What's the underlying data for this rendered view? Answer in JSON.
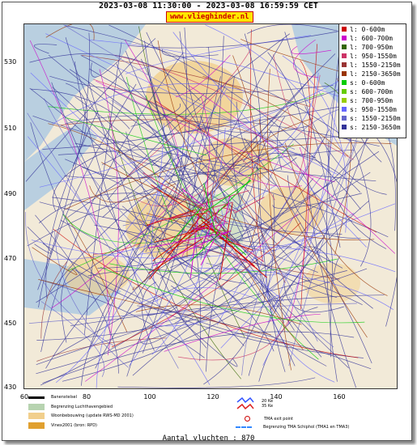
{
  "header": {
    "title": "2023-03-08 11:30:00 - 2023-03-08 16:59:59 CET",
    "site": "www.vlieghinder.nl"
  },
  "axes": {
    "y_ticks": [
      "530",
      "510",
      "490",
      "470",
      "450",
      "430"
    ],
    "x_ticks": [
      "60",
      "80",
      "100",
      "120",
      "140",
      "160"
    ]
  },
  "legend": [
    {
      "label": "l: 0-600m",
      "color": "#cc0000"
    },
    {
      "label": "l: 600-700m",
      "color": "#cc00cc"
    },
    {
      "label": "l: 700-950m",
      "color": "#336600"
    },
    {
      "label": "l: 950-1550m",
      "color": "#cc3366"
    },
    {
      "label": "l: 1550-2150m",
      "color": "#993333"
    },
    {
      "label": "l: 2150-3650m",
      "color": "#993300"
    },
    {
      "label": "s: 0-600m",
      "color": "#00cc00"
    },
    {
      "label": "s: 600-700m",
      "color": "#66cc00"
    },
    {
      "label": "s: 700-950m",
      "color": "#99cc00"
    },
    {
      "label": "s: 950-1550m",
      "color": "#6666ff"
    },
    {
      "label": "s: 1550-2150m",
      "color": "#6666cc"
    },
    {
      "label": "s: 2150-3650m",
      "color": "#333399"
    }
  ],
  "bottom_legend": {
    "runway": "Banenstelsel",
    "airport_boundary": "Begrenzing Luchthavengebied",
    "housing": "Woonbebouwing (update RWS-MD 2001)",
    "vinex": "Vinex2001 (bron: RPD)",
    "kv20": "20 Ke",
    "kv35": "35 Ke",
    "tma_exit": "TMA exit point",
    "tma_boundary": "Begrenzing TMA Schiphol  (TMA1 en TMA3)"
  },
  "count_text": "Aantal vluchten : 870",
  "colors": {
    "water": "#b9cfe0",
    "land": "#f2ead8",
    "urban": "#f1cf8c"
  }
}
